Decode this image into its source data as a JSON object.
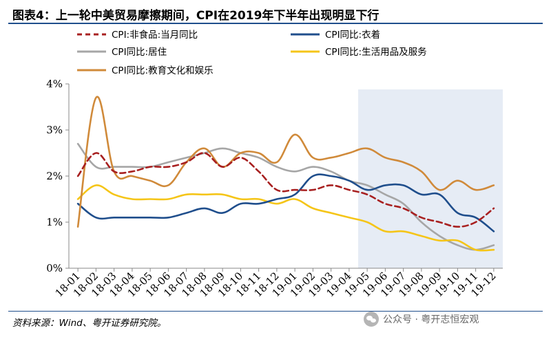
{
  "header": {
    "title": "图表4：上一轮中美贸易摩擦期间，CPI在2019年下半年出现明显下行"
  },
  "footer": {
    "source": "资料来源：Wind、粤开证券研究院。",
    "watermark": "公众号 · 粤开志恒宏观"
  },
  "colors": {
    "title_rule": "#1f4e8c",
    "shade": "#e6ecf5",
    "axis": "#888888"
  },
  "chart_data": {
    "type": "line",
    "title": "",
    "xlabel": "",
    "ylabel": "",
    "ylim": [
      0,
      4
    ],
    "yticks": [
      0,
      1,
      2,
      3,
      4
    ],
    "ytick_labels": [
      "0%",
      "1%",
      "2%",
      "3%",
      "4%"
    ],
    "grid": false,
    "legend_position": "top",
    "categories": [
      "18-01",
      "18-02",
      "18-03",
      "18-04",
      "18-05",
      "18-06",
      "18-07",
      "18-08",
      "18-09",
      "18-10",
      "18-11",
      "18-12",
      "19-01",
      "19-02",
      "19-03",
      "19-04",
      "19-05",
      "19-06",
      "19-07",
      "19-08",
      "19-09",
      "19-10",
      "19-11",
      "19-12"
    ],
    "shaded_range": [
      "19-05",
      "19-12"
    ],
    "series": [
      {
        "name": "CPI:非食品:当月同比",
        "color": "#a82020",
        "dash": true,
        "values": [
          2.0,
          2.5,
          2.1,
          2.1,
          2.2,
          2.2,
          2.3,
          2.5,
          2.2,
          2.4,
          2.1,
          1.7,
          1.7,
          1.7,
          1.8,
          1.7,
          1.6,
          1.4,
          1.3,
          1.1,
          1.0,
          0.9,
          1.0,
          1.3
        ]
      },
      {
        "name": "CPI同比:衣着",
        "color": "#1f4e8c",
        "dash": false,
        "values": [
          1.4,
          1.1,
          1.1,
          1.1,
          1.1,
          1.1,
          1.2,
          1.3,
          1.2,
          1.4,
          1.4,
          1.5,
          1.6,
          2.0,
          2.0,
          1.9,
          1.7,
          1.8,
          1.8,
          1.6,
          1.6,
          1.2,
          1.1,
          0.8
        ]
      },
      {
        "name": "CPI同比:居住",
        "color": "#a6a6a6",
        "dash": false,
        "values": [
          2.7,
          2.2,
          2.2,
          2.2,
          2.2,
          2.3,
          2.4,
          2.5,
          2.6,
          2.5,
          2.4,
          2.2,
          2.1,
          2.2,
          2.1,
          1.9,
          1.8,
          1.6,
          1.4,
          1.0,
          0.7,
          0.5,
          0.4,
          0.5
        ]
      },
      {
        "name": "CPI同比:生活用品及服务",
        "color": "#f5c518",
        "dash": false,
        "values": [
          1.5,
          1.8,
          1.6,
          1.5,
          1.5,
          1.5,
          1.6,
          1.6,
          1.6,
          1.5,
          1.5,
          1.4,
          1.5,
          1.3,
          1.2,
          1.1,
          1.0,
          0.8,
          0.8,
          0.7,
          0.6,
          0.6,
          0.4,
          0.4
        ]
      },
      {
        "name": "CPI同比:教育文化和娱乐",
        "color": "#d08a3a",
        "dash": false,
        "values": [
          0.9,
          3.7,
          2.1,
          2.0,
          1.9,
          1.8,
          2.3,
          2.6,
          2.2,
          2.5,
          2.5,
          2.3,
          2.9,
          2.4,
          2.4,
          2.5,
          2.6,
          2.4,
          2.3,
          2.1,
          1.7,
          1.9,
          1.7,
          1.8
        ]
      }
    ]
  }
}
